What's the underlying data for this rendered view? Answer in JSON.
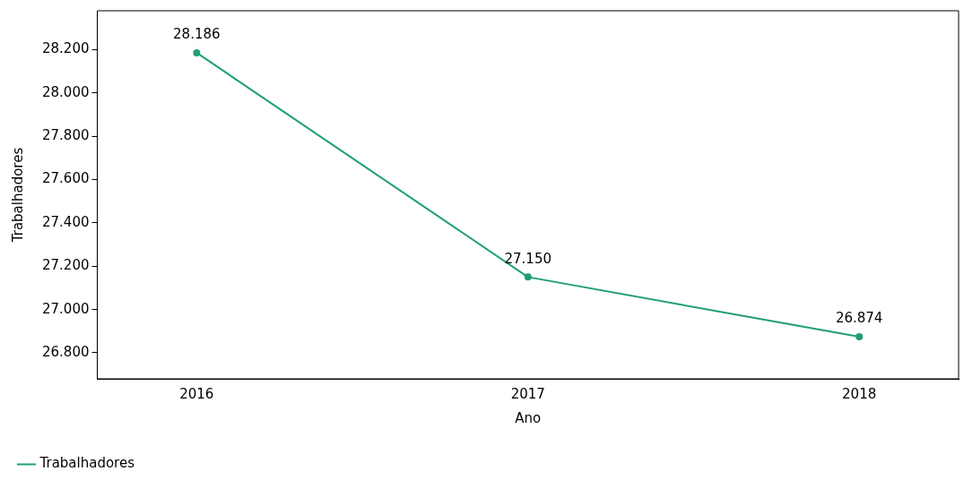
{
  "chart_data": {
    "type": "line",
    "xlabel": "Ano",
    "ylabel": "Trabalhadores",
    "x": [
      2016,
      2017,
      2018
    ],
    "xlim": [
      2015.7,
      2018.3
    ],
    "xticks": [
      2016,
      2017,
      2018
    ],
    "ylim": [
      26680,
      28380
    ],
    "yticks": [
      {
        "value": 26800,
        "label": "26.800"
      },
      {
        "value": 27000,
        "label": "27.000"
      },
      {
        "value": 27200,
        "label": "27.200"
      },
      {
        "value": 27400,
        "label": "27.400"
      },
      {
        "value": 27600,
        "label": "27.600"
      },
      {
        "value": 27800,
        "label": "27.800"
      },
      {
        "value": 28000,
        "label": "28.000"
      },
      {
        "value": 28200,
        "label": "28.200"
      }
    ],
    "series": [
      {
        "name": "Trabalhadores",
        "color": "#1f9e77",
        "values": [
          28186,
          27150,
          26874
        ],
        "value_labels": [
          "28.186",
          "27.150",
          "26.874"
        ]
      }
    ],
    "marker": "circle",
    "line_style": "solid",
    "grid": false,
    "legend": "bottom left"
  }
}
